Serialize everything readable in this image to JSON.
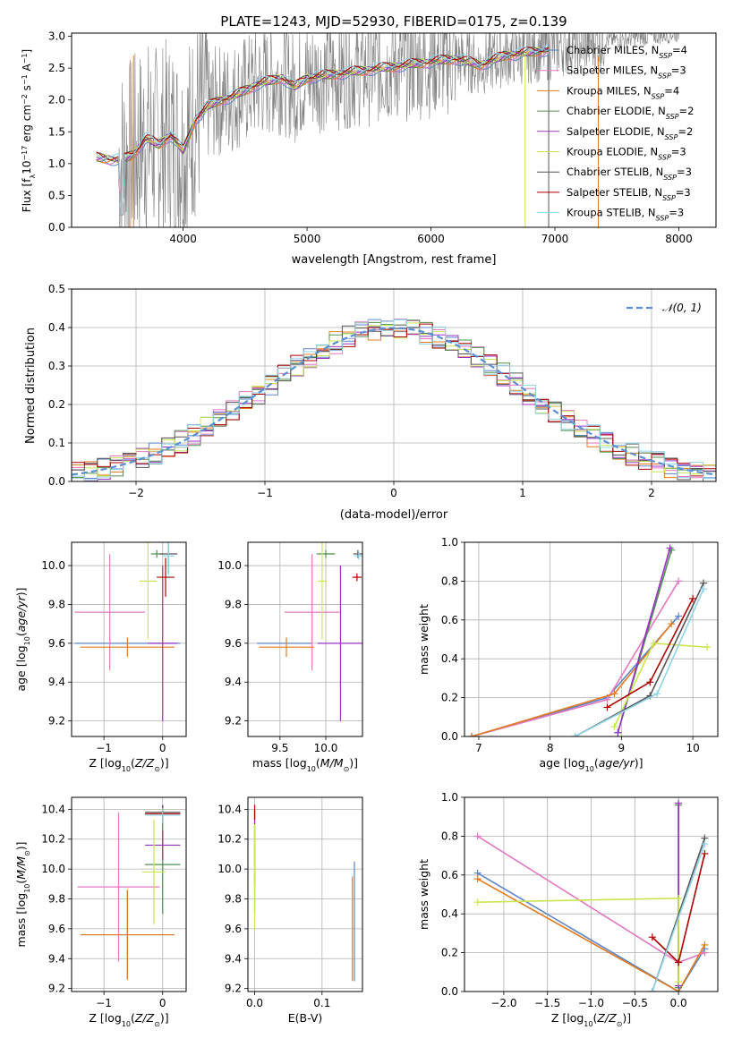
{
  "figure_title": "PLATE=1243, MJD=52930, FIBERID=0175, z=0.139",
  "colors": {
    "Chabrier MILES": "#5b86c9",
    "Salpeter MILES": "#e377c2",
    "Kroupa MILES": "#e07b20",
    "Chabrier ELODIE": "#4f8f4f",
    "Salpeter ELODIE": "#9932c4",
    "Kroupa ELODIE": "#c8e650",
    "Chabrier STELIB": "#555555",
    "Salpeter STELIB": "#aa0000",
    "Kroupa STELIB": "#8fd4e8",
    "spectrum": "#808080",
    "normal_curve": "#5b8fd4"
  },
  "chart_data": [
    {
      "id": "spectrum",
      "type": "line",
      "title": "PLATE=1243, MJD=52930, FIBERID=0175, z=0.139",
      "xlabel": "wavelength [Angstrom, rest frame]",
      "ylabel": "Flux [f$_\\lambda$10$^{-17}$ erg cm$^{-2}$ s$^{-1}$ A$^{-1}$]",
      "xlim": [
        3100,
        8300
      ],
      "ylim": [
        0,
        3.05
      ],
      "xticks": [
        4000,
        5000,
        6000,
        7000,
        8000
      ],
      "yticks": [
        0.0,
        0.5,
        1.0,
        1.5,
        2.0,
        2.5,
        3.0
      ],
      "legend_position": "top-right",
      "legend": [
        {
          "label": "Chabrier MILES, N",
          "sub": "SSP",
          "suffix": "=4"
        },
        {
          "label": "Salpeter MILES, N",
          "sub": "SSP",
          "suffix": "=3"
        },
        {
          "label": "Kroupa MILES, N",
          "sub": "SSP",
          "suffix": "=4"
        },
        {
          "label": "Chabrier ELODIE, N",
          "sub": "SSP",
          "suffix": "=2"
        },
        {
          "label": "Salpeter ELODIE, N",
          "sub": "SSP",
          "suffix": "=2"
        },
        {
          "label": "Kroupa ELODIE, N",
          "sub": "SSP",
          "suffix": "=3"
        },
        {
          "label": "Chabrier STELIB, N",
          "sub": "SSP",
          "suffix": "=3"
        },
        {
          "label": "Salpeter STELIB, N",
          "sub": "SSP",
          "suffix": "=3"
        },
        {
          "label": "Kroupa STELIB, N",
          "sub": "SSP",
          "suffix": "=3"
        }
      ],
      "model_continuum": {
        "x": [
          3300,
          3500,
          3600,
          3700,
          3800,
          3900,
          4000,
          4100,
          4200,
          4300,
          4400,
          4500,
          4600,
          4700,
          4800,
          4900,
          5000,
          5200,
          5400,
          5600,
          5800,
          6000,
          6200,
          6400,
          6600,
          6800,
          7000
        ],
        "y": [
          1.1,
          1.05,
          1.15,
          1.4,
          1.3,
          1.45,
          1.2,
          1.7,
          1.9,
          2.0,
          2.05,
          2.15,
          2.25,
          2.3,
          2.35,
          2.2,
          2.35,
          2.4,
          2.45,
          2.5,
          2.55,
          2.6,
          2.65,
          2.55,
          2.7,
          2.75,
          2.8
        ]
      },
      "spectrum_range": [
        3480,
        8000
      ]
    },
    {
      "id": "residual_hist",
      "type": "line",
      "xlabel": "(data-model)/error",
      "ylabel": "Normed distribution",
      "xlim": [
        -2.5,
        2.5
      ],
      "ylim": [
        0,
        0.5
      ],
      "xticks": [
        -2,
        -1,
        0,
        1,
        2
      ],
      "yticks": [
        0.0,
        0.1,
        0.2,
        0.3,
        0.4,
        0.5
      ],
      "legend": [
        "𝒩(0, 1)"
      ],
      "legend_position": "top-right",
      "bin_width": 0.1,
      "series_name_normal": "N(0,1)"
    },
    {
      "id": "age_vs_Z",
      "type": "scatter",
      "xlabel": "Z [log$_{10}$(Z/Z$_\\odot$)]",
      "ylabel": "age  [log$_{10}$(age/yr)]",
      "xlim": [
        -1.55,
        0.4
      ],
      "ylim": [
        9.12,
        10.12
      ],
      "xticks": [
        -1,
        0
      ],
      "yticks": [
        9.2,
        9.4,
        9.6,
        9.8,
        10.0
      ],
      "points": [
        {
          "series": "Chabrier MILES",
          "x": -0.6,
          "y": 9.6,
          "xerr": 0.9,
          "yerr": 0.0
        },
        {
          "series": "Salpeter MILES",
          "x": -0.9,
          "y": 9.76,
          "xerr": 0.6,
          "yerr": 0.3
        },
        {
          "series": "Kroupa MILES",
          "x": -0.6,
          "y": 9.58,
          "xerr": 0.8,
          "yerr": 0.05
        },
        {
          "series": "Chabrier ELODIE",
          "x": -0.1,
          "y": 10.06,
          "xerr": 0.1,
          "yerr": 0.02
        },
        {
          "series": "Salpeter ELODIE",
          "x": 0.0,
          "y": 9.6,
          "xerr": 0.25,
          "yerr": 0.4
        },
        {
          "series": "Kroupa ELODIE",
          "x": -0.25,
          "y": 9.92,
          "xerr": 0.15,
          "yerr": 0.3
        },
        {
          "series": "Chabrier STELIB",
          "x": 0.1,
          "y": 10.06,
          "xerr": 0.15,
          "yerr": 0.1
        },
        {
          "series": "Salpeter STELIB",
          "x": 0.05,
          "y": 9.94,
          "xerr": 0.15,
          "yerr": 0.1
        },
        {
          "series": "Kroupa STELIB",
          "x": 0.1,
          "y": 10.05,
          "xerr": 0.1,
          "yerr": 0.1
        }
      ]
    },
    {
      "id": "age_vs_mass",
      "type": "scatter",
      "xlabel": "mass [log$_{10}$(M/M$_\\odot$)]",
      "xlim": [
        9.15,
        10.4
      ],
      "ylim": [
        9.12,
        10.12
      ],
      "xticks": [
        9.5,
        10.0
      ],
      "yticks": [
        9.2,
        9.4,
        9.6,
        9.8,
        10.0
      ],
      "points": [
        {
          "series": "Chabrier MILES",
          "x": 9.55,
          "y": 9.6,
          "xerr": 0.3,
          "yerr": 0.0
        },
        {
          "series": "Salpeter MILES",
          "x": 9.85,
          "y": 9.76,
          "xerr": 0.3,
          "yerr": 0.3
        },
        {
          "series": "Kroupa MILES",
          "x": 9.57,
          "y": 9.58,
          "xerr": 0.3,
          "yerr": 0.05
        },
        {
          "series": "Chabrier ELODIE",
          "x": 10.0,
          "y": 10.06,
          "xerr": 0.1,
          "yerr": 0.02
        },
        {
          "series": "Salpeter ELODIE",
          "x": 10.16,
          "y": 9.6,
          "xerr": 0.25,
          "yerr": 0.4
        },
        {
          "series": "Kroupa ELODIE",
          "x": 9.96,
          "y": 9.92,
          "xerr": 0.05,
          "yerr": 0.3
        },
        {
          "series": "Chabrier STELIB",
          "x": 10.35,
          "y": 10.06,
          "xerr": 0.05,
          "yerr": 0.02
        },
        {
          "series": "Salpeter STELIB",
          "x": 10.34,
          "y": 9.94,
          "xerr": 0.05,
          "yerr": 0.02
        },
        {
          "series": "Kroupa STELIB",
          "x": 10.36,
          "y": 10.05,
          "xerr": 0.05,
          "yerr": 0.02
        }
      ]
    },
    {
      "id": "weight_vs_age",
      "type": "line",
      "xlabel": "age  [log$_{10}$(age/yr)]",
      "ylabel": "mass weight",
      "xlim": [
        6.8,
        10.35
      ],
      "ylim": [
        0,
        1.0
      ],
      "xticks": [
        7,
        8,
        9,
        10
      ],
      "yticks": [
        0.0,
        0.2,
        0.4,
        0.6,
        0.8,
        1.0
      ],
      "series": [
        {
          "name": "Chabrier MILES",
          "x": [
            6.9,
            8.8,
            9.8
          ],
          "y": [
            0.0,
            0.2,
            0.62
          ]
        },
        {
          "name": "Salpeter MILES",
          "x": [
            6.9,
            8.8,
            9.8
          ],
          "y": [
            0.0,
            0.19,
            0.8
          ]
        },
        {
          "name": "Kroupa MILES",
          "x": [
            6.9,
            8.9,
            9.7
          ],
          "y": [
            0.0,
            0.22,
            0.58
          ]
        },
        {
          "name": "Chabrier ELODIE",
          "x": [
            8.95,
            9.7
          ],
          "y": [
            0.02,
            0.96
          ]
        },
        {
          "name": "Salpeter ELODIE",
          "x": [
            8.95,
            9.68
          ],
          "y": [
            0.02,
            0.97
          ]
        },
        {
          "name": "Kroupa ELODIE",
          "x": [
            8.9,
            9.45,
            10.2
          ],
          "y": [
            0.05,
            0.48,
            0.46
          ]
        },
        {
          "name": "Chabrier STELIB",
          "x": [
            8.35,
            9.4,
            10.15
          ],
          "y": [
            0.0,
            0.21,
            0.79
          ]
        },
        {
          "name": "Salpeter STELIB",
          "x": [
            8.8,
            9.4,
            10.0
          ],
          "y": [
            0.15,
            0.28,
            0.71
          ]
        },
        {
          "name": "Kroupa STELIB",
          "x": [
            8.35,
            9.5,
            10.15
          ],
          "y": [
            0.0,
            0.22,
            0.76
          ]
        }
      ]
    },
    {
      "id": "mass_vs_Z",
      "type": "scatter",
      "xlabel": "Z [log$_{10}$(Z/Z$_\\odot$)]",
      "ylabel": "mass [log$_{10}$(M/M$_\\odot$)]",
      "xlim": [
        -1.55,
        0.4
      ],
      "ylim": [
        9.18,
        10.48
      ],
      "xticks": [
        -1,
        0
      ],
      "yticks": [
        9.2,
        9.4,
        9.6,
        9.8,
        10.0,
        10.2,
        10.4
      ],
      "points": [
        {
          "series": "Chabrier MILES",
          "x": -0.6,
          "y": 9.56,
          "xerr": 0.8,
          "yerr": 0.3
        },
        {
          "series": "Salpeter MILES",
          "x": -0.75,
          "y": 9.88,
          "xerr": 0.7,
          "yerr": 0.5
        },
        {
          "series": "Kroupa MILES",
          "x": -0.6,
          "y": 9.56,
          "xerr": 0.8,
          "yerr": 0.3
        },
        {
          "series": "Chabrier ELODIE",
          "x": 0.0,
          "y": 10.03,
          "xerr": 0.3,
          "yerr": 0.33
        },
        {
          "series": "Salpeter ELODIE",
          "x": 0.0,
          "y": 10.16,
          "xerr": 0.3,
          "yerr": 0.1
        },
        {
          "series": "Kroupa ELODIE",
          "x": -0.15,
          "y": 9.98,
          "xerr": 0.2,
          "yerr": 0.35
        },
        {
          "series": "Chabrier STELIB",
          "x": 0.0,
          "y": 10.38,
          "xerr": 0.3,
          "yerr": 0.05
        },
        {
          "series": "Salpeter STELIB",
          "x": 0.0,
          "y": 10.37,
          "xerr": 0.3,
          "yerr": 0.05
        },
        {
          "series": "Kroupa STELIB",
          "x": 0.0,
          "y": 10.36,
          "xerr": 0.3,
          "yerr": 0.05
        }
      ]
    },
    {
      "id": "mass_vs_ebv",
      "type": "scatter",
      "xlabel": "E(B-V)",
      "xlim": [
        -0.01,
        0.16
      ],
      "ylim": [
        9.18,
        10.48
      ],
      "xticks": [
        0.0,
        0.1
      ],
      "yticks": [
        9.2,
        9.4,
        9.6,
        9.8,
        10.0,
        10.2,
        10.4
      ],
      "points": [
        {
          "series": "Chabrier MILES",
          "x": 0.148,
          "y": 9.65,
          "xerr": 0.0,
          "yerr": 0.4
        },
        {
          "series": "Kroupa MILES",
          "x": 0.145,
          "y": 9.6,
          "xerr": 0.0,
          "yerr": 0.35
        },
        {
          "series": "Chabrier ELODIE",
          "x": 0.0,
          "y": 10.05,
          "xerr": 0.0,
          "yerr": 0.35
        },
        {
          "series": "Salpeter ELODIE",
          "x": 0.0,
          "y": 10.15,
          "xerr": 0.0,
          "yerr": 0.25
        },
        {
          "series": "Kroupa ELODIE",
          "x": 0.0,
          "y": 9.95,
          "xerr": 0.0,
          "yerr": 0.35
        },
        {
          "series": "Salpeter STELIB",
          "x": 0.0,
          "y": 10.38,
          "xerr": 0.0,
          "yerr": 0.05
        }
      ]
    },
    {
      "id": "weight_vs_Z",
      "type": "line",
      "xlabel": "Z [log$_{10}$(Z/Z$_\\odot$)]",
      "ylabel": "mass weight",
      "xlim": [
        -2.45,
        0.45
      ],
      "ylim": [
        0,
        1.0
      ],
      "xticks": [
        -2.0,
        -1.5,
        -1.0,
        -0.5,
        0.0
      ],
      "yticks": [
        0.0,
        0.2,
        0.4,
        0.6,
        0.8,
        1.0
      ],
      "series": [
        {
          "name": "Chabrier MILES",
          "x": [
            -2.3,
            0.0,
            0.3
          ],
          "y": [
            0.61,
            0.0,
            0.22
          ]
        },
        {
          "name": "Salpeter MILES",
          "x": [
            -2.3,
            0.0,
            0.3
          ],
          "y": [
            0.8,
            0.15,
            0.2
          ]
        },
        {
          "name": "Kroupa MILES",
          "x": [
            -2.3,
            0.0,
            0.3
          ],
          "y": [
            0.58,
            0.0,
            0.24
          ]
        },
        {
          "name": "Chabrier ELODIE",
          "x": [
            0.0,
            0.0
          ],
          "y": [
            0.02,
            0.96
          ]
        },
        {
          "name": "Salpeter ELODIE",
          "x": [
            0.0,
            0.0
          ],
          "y": [
            0.03,
            0.97
          ]
        },
        {
          "name": "Kroupa ELODIE",
          "x": [
            -2.3,
            0.0,
            0.0
          ],
          "y": [
            0.46,
            0.48,
            0.05
          ]
        },
        {
          "name": "Chabrier STELIB",
          "x": [
            -0.3,
            0.3
          ],
          "y": [
            0.0,
            0.79
          ]
        },
        {
          "name": "Salpeter STELIB",
          "x": [
            -0.3,
            0.0,
            0.3
          ],
          "y": [
            0.28,
            0.15,
            0.71
          ]
        },
        {
          "name": "Kroupa STELIB",
          "x": [
            -0.3,
            0.3
          ],
          "y": [
            0.0,
            0.76
          ]
        }
      ]
    }
  ]
}
